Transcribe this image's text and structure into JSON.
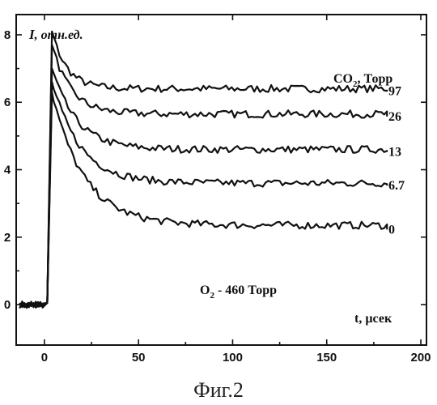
{
  "chart_data": {
    "type": "line",
    "title": "",
    "xlabel_prefix": "t, ",
    "xlabel_unit": "µсек",
    "ylabel_symbol": "I",
    "ylabel_rest": ", отн.ед.",
    "xlim": [
      -15,
      203
    ],
    "ylim": [
      -1.2,
      8.6
    ],
    "xticks": [
      0,
      50,
      100,
      150,
      200
    ],
    "yticks": [
      0,
      2,
      4,
      6,
      8
    ],
    "legend_title": "CO",
    "legend_title_sub": "2",
    "legend_title_rest": ", Торр",
    "annotation_prefix": "O",
    "annotation_sub": "2",
    "annotation_rest": " - 460 Торр",
    "x_start": -13,
    "x_end": 182,
    "step_x": 3,
    "series": [
      {
        "name": "97",
        "peak": 8.1,
        "plateau": 6.4,
        "tau": 8,
        "end_value": 6.35
      },
      {
        "name": "26",
        "peak": 7.7,
        "plateau": 5.65,
        "tau": 10,
        "end_value": 5.6
      },
      {
        "name": "13",
        "peak": 7.0,
        "plateau": 4.6,
        "tau": 13,
        "end_value": 4.55
      },
      {
        "name": "6.7",
        "peak": 6.6,
        "plateau": 3.6,
        "tau": 15,
        "end_value": 3.55
      },
      {
        "name": "0",
        "peak": 6.3,
        "plateau": 2.35,
        "tau": 17,
        "end_value": 2.25
      }
    ],
    "grid": false,
    "caption": "Фиг.2"
  }
}
